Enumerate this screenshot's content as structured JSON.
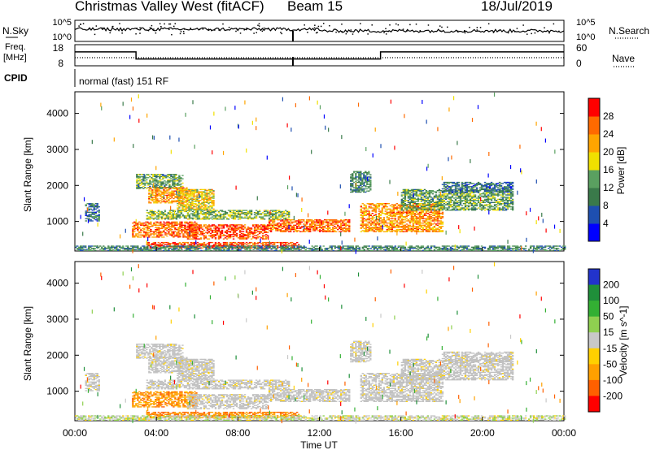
{
  "header": {
    "radar_title": "Christmas Valley West (fitACF)",
    "beam_label": "Beam 15",
    "date": "18/Jul/2019"
  },
  "top_panel": {
    "nsky_label": "N.Sky",
    "nsearch_label": "N.Search",
    "nsky_ticks": [
      "10^5",
      "10^0"
    ],
    "nsearch_ticks": [
      "10^5",
      "10^0"
    ],
    "freq_label_line1": "Freq.",
    "freq_label_line2": "[MHz]",
    "freq_ticks": [
      "18",
      "8"
    ],
    "nave_label": "Nave",
    "nave_ticks": [
      "60",
      "0"
    ],
    "cpid_label": "CPID",
    "cpid_value": "normal (fast) 151 RF"
  },
  "colors": {
    "power_scale": [
      "#0000ff",
      "#1e4fb0",
      "#3a7a4a",
      "#5aa060",
      "#f0e000",
      "#ffa500",
      "#ff6a00",
      "#ff0000"
    ],
    "velocity_scale": [
      "#2233cc",
      "#1f8f3a",
      "#33b033",
      "#8fd050",
      "#c8c8c8",
      "#ffd000",
      "#ffa000",
      "#ff6000",
      "#ff0000"
    ],
    "ground_scatter": "#c0c0c0"
  },
  "chart_data": [
    {
      "type": "heatmap",
      "name": "power",
      "ylabel": "Slant Range [km]",
      "xlabel": "",
      "yticks": [
        1000,
        2000,
        3000,
        4000
      ],
      "ylim": [
        180,
        4600
      ],
      "xlim_hours": [
        0,
        24
      ],
      "colorbar_label": "Power [dB]",
      "colorbar_ticks": [
        4,
        8,
        12,
        16,
        20,
        24,
        28
      ],
      "colorbar_range": [
        0,
        30
      ]
    },
    {
      "type": "heatmap",
      "name": "velocity",
      "ylabel": "Slant Range [km]",
      "xlabel": "Time UT",
      "yticks": [
        1000,
        2000,
        3000,
        4000
      ],
      "ylim": [
        180,
        4600
      ],
      "xlim_hours": [
        0,
        24
      ],
      "xticks": [
        "00:00",
        "04:00",
        "08:00",
        "12:00",
        "16:00",
        "20:00",
        "00:00"
      ],
      "colorbar_label": "Velocity [m s^-1]",
      "colorbar_ticks": [
        200,
        100,
        50,
        15,
        -15,
        -50,
        -100,
        -200
      ]
    }
  ],
  "freq_series_mhz": [
    {
      "from": 0.0,
      "to": 3.0,
      "value": 14.6
    },
    {
      "from": 3.0,
      "to": 15.0,
      "value": 11.2
    },
    {
      "from": 15.0,
      "to": 24.0,
      "value": 14.6
    }
  ],
  "nave_series": [
    {
      "from": 0.0,
      "to": 24.0,
      "value": 23
    }
  ]
}
